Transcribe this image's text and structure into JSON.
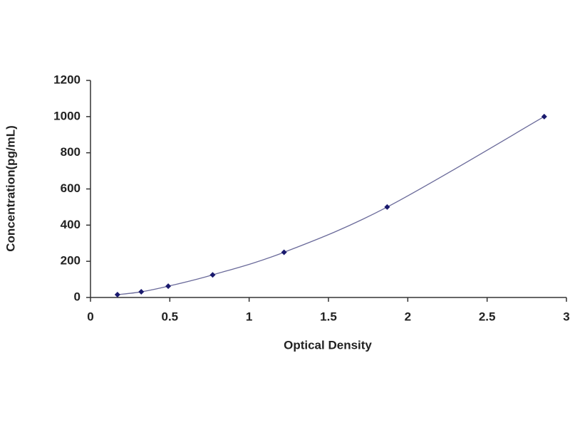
{
  "chart_data": {
    "type": "scatter",
    "x_label": "Optical Density",
    "y_label": "Concentration(pg/mL)",
    "x": [
      0.17,
      0.32,
      0.49,
      0.77,
      1.22,
      1.87,
      2.86
    ],
    "values": [
      15.6,
      31.25,
      62.5,
      125,
      250,
      500,
      1000
    ],
    "color": "#1a1a6e",
    "line": true,
    "line_color": "#6a6a9a",
    "xlim": [
      0,
      3
    ],
    "xticks": [
      0,
      0.5,
      1,
      1.5,
      2,
      2.5,
      3
    ],
    "ylim": [
      0,
      1200
    ],
    "yticks": [
      0,
      200,
      400,
      600,
      800,
      1000,
      1200
    ],
    "grid": false
  }
}
